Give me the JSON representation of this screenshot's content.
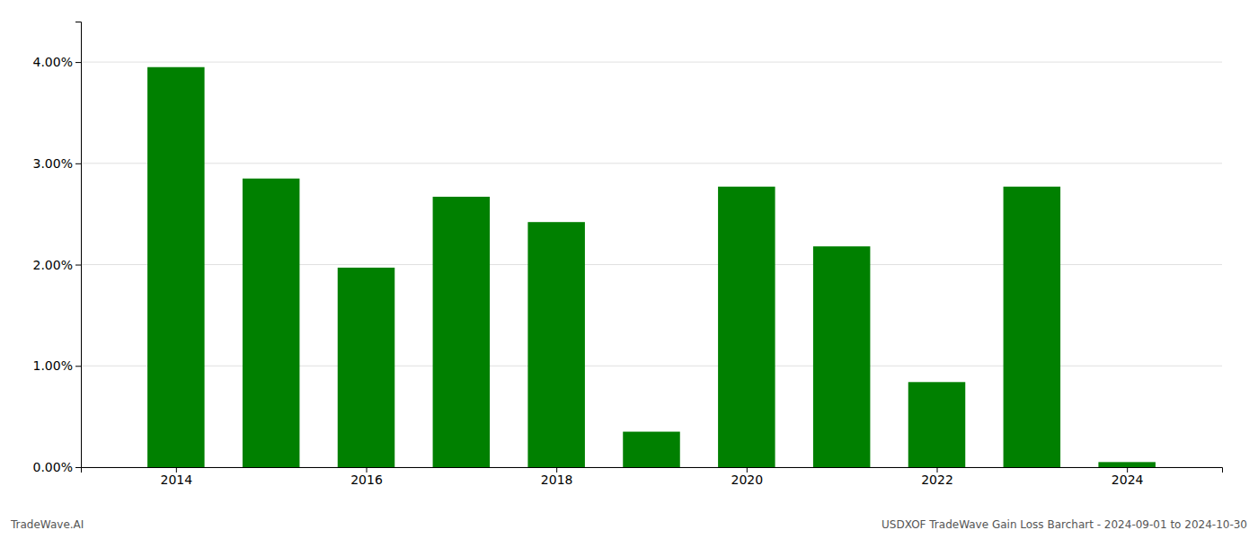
{
  "chart_data": {
    "type": "bar",
    "x": [
      2014,
      2015,
      2016,
      2017,
      2018,
      2019,
      2020,
      2021,
      2022,
      2023,
      2024
    ],
    "values": [
      0.0395,
      0.0285,
      0.0197,
      0.0267,
      0.0242,
      0.0035,
      0.0277,
      0.0218,
      0.0084,
      0.0277,
      0.0005
    ],
    "color": "#008000",
    "xlim": [
      2013.0,
      2025.0
    ],
    "xticks": [
      2014,
      2016,
      2018,
      2020,
      2022,
      2024
    ],
    "ylim": [
      0,
      0.044
    ],
    "yticks": [
      {
        "value": 0.0,
        "label": "0.00%"
      },
      {
        "value": 0.01,
        "label": "1.00%"
      },
      {
        "value": 0.02,
        "label": "2.00%"
      },
      {
        "value": 0.03,
        "label": "3.00%"
      },
      {
        "value": 0.04,
        "label": "4.00%"
      }
    ],
    "grid": true,
    "annotations": [
      "TradeWave.AI",
      "USDXOF TradeWave Gain Loss Barchart - 2024-09-01 to 2024-10-30"
    ]
  }
}
